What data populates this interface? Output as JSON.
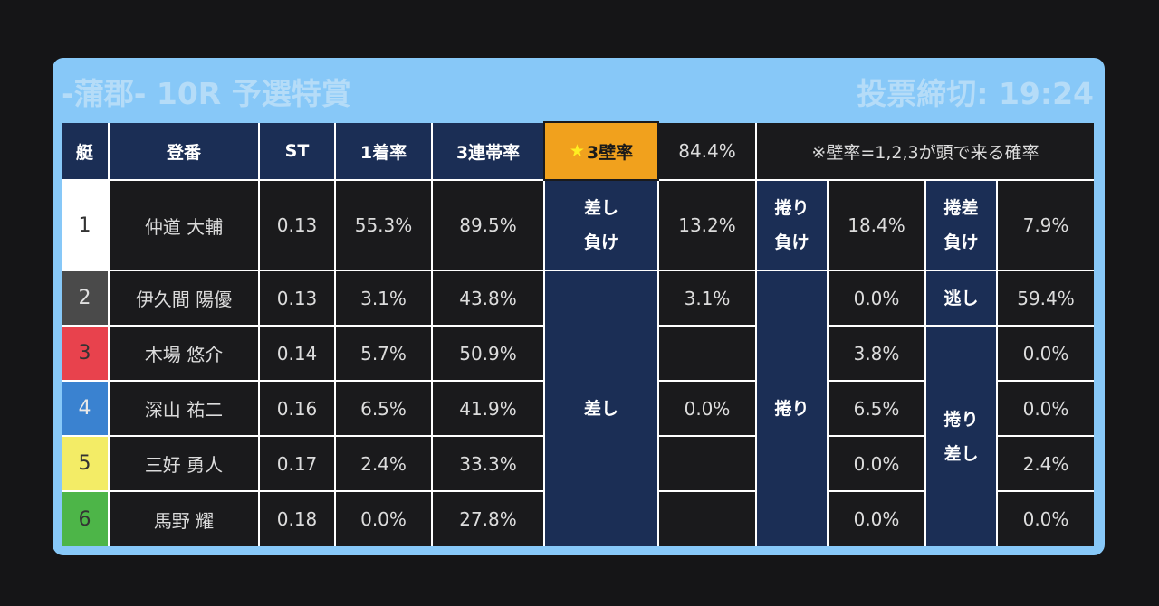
{
  "header": {
    "title": "-蒲郡- 10R 予選特賞",
    "deadline": "投票締切: 19:24"
  },
  "columns": {
    "boat": "艇",
    "reg": "登番",
    "st": "ST",
    "win": "1着率",
    "top3": "3連帯率",
    "wall_star": "★",
    "wall_label": "3壁率",
    "wall_value": "84.4%",
    "note": "※壁率=1,2,3が頭で来る確率"
  },
  "racers": [
    {
      "boat": "1",
      "name": "仲道 大輔",
      "st": "0.13",
      "win": "55.3%",
      "top3": "89.5%",
      "boat_color": "#ffffff",
      "boat_text": "#333333"
    },
    {
      "boat": "2",
      "name": "伊久間 陽優",
      "st": "0.13",
      "win": "3.1%",
      "top3": "43.8%",
      "boat_color": "#4a4a4a",
      "boat_text": "#e0e0e0"
    },
    {
      "boat": "3",
      "name": "木場 悠介",
      "st": "0.14",
      "win": "5.7%",
      "top3": "50.9%",
      "boat_color": "#e8424d",
      "boat_text": "#333333"
    },
    {
      "boat": "4",
      "name": "深山 祐二",
      "st": "0.16",
      "win": "6.5%",
      "top3": "41.9%",
      "boat_color": "#3a82d0",
      "boat_text": "#e8e8e8"
    },
    {
      "boat": "5",
      "name": "三好 勇人",
      "st": "0.17",
      "win": "2.4%",
      "top3": "33.3%",
      "boat_color": "#f3ec66",
      "boat_text": "#333333"
    },
    {
      "boat": "6",
      "name": "馬野 耀",
      "st": "0.18",
      "win": "0.0%",
      "top3": "27.8%",
      "boat_color": "#4db548",
      "boat_text": "#333333"
    }
  ],
  "kimarite": {
    "sashi_make_l1": "差し",
    "sashi_make_l2": "負け",
    "sashi_make_val": "13.2%",
    "makuri_make_l1": "捲り",
    "makuri_make_l2": "負け",
    "makuri_make_val": "18.4%",
    "makurisashi_make_l1": "捲差",
    "makurisashi_make_l2": "負け",
    "makurisashi_make_val": "7.9%",
    "sashi": "差し",
    "sashi_vals": [
      "3.1%",
      "",
      "0.0%",
      "",
      ""
    ],
    "makuri": "捲り",
    "makuri_vals": [
      "0.0%",
      "3.8%",
      "6.5%",
      "0.0%",
      "0.0%"
    ],
    "nige": "逃し",
    "nige_val": "59.4%",
    "makurisashi_l1": "捲り",
    "makurisashi_l2": "差し",
    "makurisashi_vals": [
      "0.0%",
      "0.0%",
      "2.4%",
      "0.0%"
    ]
  }
}
